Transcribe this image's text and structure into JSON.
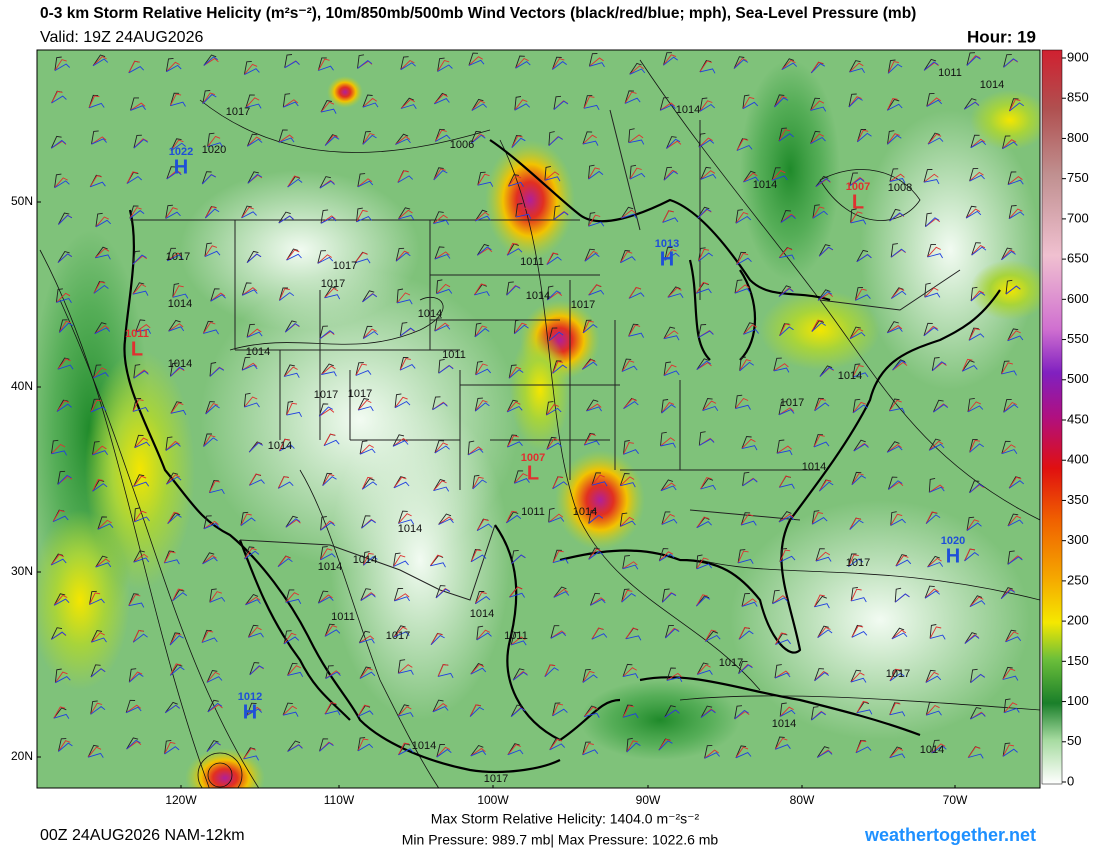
{
  "header": {
    "title": "0-3 km Storm Relative Helicity (m²s⁻²), 10m/850mb/500mb Wind Vectors (black/red/blue; mph), Sea-Level Pressure (mb)",
    "valid": "Valid: 19Z 24AUG2026",
    "hour": "Hour: 19"
  },
  "axes": {
    "lon_labels": [
      "120W",
      "110W",
      "100W",
      "90W",
      "80W",
      "70W"
    ],
    "lat_labels": [
      "50N",
      "40N",
      "30N",
      "20N"
    ]
  },
  "colorbar": {
    "lim": [
      0,
      900
    ],
    "ticks": [
      0,
      50,
      100,
      150,
      200,
      250,
      300,
      350,
      400,
      450,
      500,
      550,
      600,
      650,
      700,
      750,
      800,
      850,
      900
    ]
  },
  "pressure_centers": [
    {
      "value": "1022",
      "letter": "H"
    },
    {
      "value": "1011",
      "letter": "L"
    },
    {
      "value": "1007",
      "letter": "L"
    },
    {
      "value": "1013",
      "letter": "H"
    },
    {
      "value": "1007",
      "letter": "L"
    },
    {
      "value": "1020",
      "letter": "H"
    },
    {
      "value": "1012",
      "letter": "H"
    }
  ],
  "isobar_labels": [
    "1017",
    "1020",
    "1006",
    "1014",
    "1011",
    "1014",
    "1014",
    "1008",
    "1017",
    "1017",
    "1017",
    "1011",
    "1014",
    "1017",
    "1014",
    "1014",
    "1014",
    "1014",
    "1011",
    "1017",
    "1017",
    "1014",
    "1017",
    "1014",
    "1014",
    "1011",
    "1014",
    "1014",
    "1014",
    "1014",
    "1017",
    "1011",
    "1014",
    "1017",
    "1011",
    "1017",
    "1017",
    "1014",
    "1014",
    "1014",
    "1017"
  ],
  "footer": {
    "run": "00Z 24AUG2026 NAM-12km",
    "max_helicity": "Max Storm Relative Helicity: 1404.0 m⁻²s⁻²",
    "pressure": "Min Pressure: 989.7 mb| Max Pressure: 1022.6 mb",
    "credit": "weathertogether.net"
  }
}
